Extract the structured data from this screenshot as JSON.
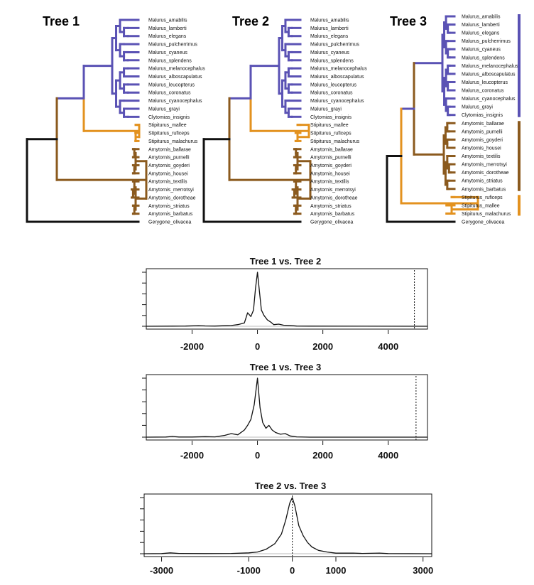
{
  "colors": {
    "malurus": "#5a52b4",
    "stipiturus": "#e3921f",
    "amytornis": "#8b5a1e",
    "outgroup": "#111111",
    "density": "#111111",
    "zeroline": "#bbbbbb"
  },
  "trees": [
    {
      "id": "tree1",
      "title": "Tree 1",
      "tips": [
        {
          "name": "Malurus_amabilis",
          "group": "malurus"
        },
        {
          "name": "Malurus_lamberti",
          "group": "malurus"
        },
        {
          "name": "Malurus_elegans",
          "group": "malurus"
        },
        {
          "name": "Malurus_pulcherrimus",
          "group": "malurus"
        },
        {
          "name": "Malurus_cyaneus",
          "group": "malurus"
        },
        {
          "name": "Malurus_splendens",
          "group": "malurus"
        },
        {
          "name": "Malurus_melanocephalus",
          "group": "malurus"
        },
        {
          "name": "Malurus_alboscapulatus",
          "group": "malurus"
        },
        {
          "name": "Malurus_leucopterus",
          "group": "malurus"
        },
        {
          "name": "Malurus_coronatus",
          "group": "malurus"
        },
        {
          "name": "Malurus_cyanocephalus",
          "group": "malurus"
        },
        {
          "name": "Malurus_grayi",
          "group": "malurus"
        },
        {
          "name": "Clytomias_insignis",
          "group": "malurus"
        },
        {
          "name": "Stipiturus_mallee",
          "group": "stipiturus"
        },
        {
          "name": "Stipiturus_ruficeps",
          "group": "stipiturus"
        },
        {
          "name": "Stipiturus_malachurus",
          "group": "stipiturus"
        },
        {
          "name": "Amytornis_ballarae",
          "group": "amytornis"
        },
        {
          "name": "Amytornis_purnelli",
          "group": "amytornis"
        },
        {
          "name": "Amytornis_goyderi",
          "group": "amytornis"
        },
        {
          "name": "Amytornis_housei",
          "group": "amytornis"
        },
        {
          "name": "Amytornis_textilis",
          "group": "amytornis"
        },
        {
          "name": "Amytornis_merrotsyi",
          "group": "amytornis"
        },
        {
          "name": "Amytornis_dorotheae",
          "group": "amytornis"
        },
        {
          "name": "Amytornis_striatus",
          "group": "amytornis"
        },
        {
          "name": "Amytornis_barbatus",
          "group": "amytornis"
        },
        {
          "name": "Gerygone_olivacea",
          "group": "outgroup"
        }
      ]
    },
    {
      "id": "tree2",
      "title": "Tree 2",
      "tips": [
        {
          "name": "Malurus_amabilis",
          "group": "malurus"
        },
        {
          "name": "Malurus_lamberti",
          "group": "malurus"
        },
        {
          "name": "Malurus_elegans",
          "group": "malurus"
        },
        {
          "name": "Malurus_pulcherrimus",
          "group": "malurus"
        },
        {
          "name": "Malurus_cyaneus",
          "group": "malurus"
        },
        {
          "name": "Malurus_splendens",
          "group": "malurus"
        },
        {
          "name": "Malurus_melanocephalus",
          "group": "malurus"
        },
        {
          "name": "Malurus_alboscapulatus",
          "group": "malurus"
        },
        {
          "name": "Malurus_leucopterus",
          "group": "malurus"
        },
        {
          "name": "Malurus_coronatus",
          "group": "malurus"
        },
        {
          "name": "Malurus_cyanocephalus",
          "group": "malurus"
        },
        {
          "name": "Malurus_grayi",
          "group": "malurus"
        },
        {
          "name": "Clytomias_insignis",
          "group": "malurus"
        },
        {
          "name": "Stipiturus_mallee",
          "group": "stipiturus"
        },
        {
          "name": "Stipiturus_ruficeps",
          "group": "stipiturus"
        },
        {
          "name": "Stipiturus_malachurus",
          "group": "stipiturus"
        },
        {
          "name": "Amytornis_ballarae",
          "group": "amytornis"
        },
        {
          "name": "Amytornis_purnelli",
          "group": "amytornis"
        },
        {
          "name": "Amytornis_goyderi",
          "group": "amytornis"
        },
        {
          "name": "Amytornis_housei",
          "group": "amytornis"
        },
        {
          "name": "Amytornis_textilis",
          "group": "amytornis"
        },
        {
          "name": "Amytornis_merrotsyi",
          "group": "amytornis"
        },
        {
          "name": "Amytornis_dorotheae",
          "group": "amytornis"
        },
        {
          "name": "Amytornis_striatus",
          "group": "amytornis"
        },
        {
          "name": "Amytornis_barbatus",
          "group": "amytornis"
        },
        {
          "name": "Gerygone_olivacea",
          "group": "outgroup"
        }
      ]
    },
    {
      "id": "tree3",
      "title": "Tree 3",
      "tips": [
        {
          "name": "Malurus_amabilis",
          "group": "malurus"
        },
        {
          "name": "Malurus_lamberti",
          "group": "malurus"
        },
        {
          "name": "Malurus_elegans",
          "group": "malurus"
        },
        {
          "name": "Malurus_pulcherrimus",
          "group": "malurus"
        },
        {
          "name": "Malurus_cyaneus",
          "group": "malurus"
        },
        {
          "name": "Malurus_splendens",
          "group": "malurus"
        },
        {
          "name": "Malurus_melanocephalus",
          "group": "malurus"
        },
        {
          "name": "Malurus_alboscapulatus",
          "group": "malurus"
        },
        {
          "name": "Malurus_leucopterus",
          "group": "malurus"
        },
        {
          "name": "Malurus_coronatus",
          "group": "malurus"
        },
        {
          "name": "Malurus_cyanocephalus",
          "group": "malurus"
        },
        {
          "name": "Malurus_grayi",
          "group": "malurus"
        },
        {
          "name": "Clytomias_insignis",
          "group": "malurus"
        },
        {
          "name": "Amytornis_ballarae",
          "group": "amytornis"
        },
        {
          "name": "Amytornis_purnelli",
          "group": "amytornis"
        },
        {
          "name": "Amytornis_goyderi",
          "group": "amytornis"
        },
        {
          "name": "Amytornis_housei",
          "group": "amytornis"
        },
        {
          "name": "Amytornis_textilis",
          "group": "amytornis"
        },
        {
          "name": "Amytornis_merrotsyi",
          "group": "amytornis"
        },
        {
          "name": "Amytornis_dorotheae",
          "group": "amytornis"
        },
        {
          "name": "Amytornis_striatus",
          "group": "amytornis"
        },
        {
          "name": "Amytornis_barbatus",
          "group": "amytornis"
        },
        {
          "name": "Stipiturus_ruficeps",
          "group": "stipiturus"
        },
        {
          "name": "Stipiturus_mallee",
          "group": "stipiturus"
        },
        {
          "name": "Stipiturus_malachurus",
          "group": "stipiturus"
        },
        {
          "name": "Gerygone_olivacea",
          "group": "outgroup"
        }
      ],
      "clade_bars": [
        "malurus",
        "amytornis",
        "stipiturus"
      ]
    }
  ],
  "chart_data": [
    {
      "type": "line",
      "title": "Tree 1 vs. Tree 2",
      "xlim": [
        -3400,
        5200
      ],
      "xticks": [
        -2000,
        0,
        2000,
        4000
      ],
      "observed": 4800,
      "peak_x": 0,
      "density": [
        [
          -3400,
          0
        ],
        [
          -2600,
          0.002
        ],
        [
          -2200,
          0.004
        ],
        [
          -1800,
          0.012
        ],
        [
          -1600,
          0.006
        ],
        [
          -1300,
          0.004
        ],
        [
          -1000,
          0.01
        ],
        [
          -800,
          0.015
        ],
        [
          -600,
          0.03
        ],
        [
          -400,
          0.06
        ],
        [
          -300,
          0.25
        ],
        [
          -200,
          0.18
        ],
        [
          -120,
          0.3
        ],
        [
          -60,
          0.7
        ],
        [
          0,
          1.0
        ],
        [
          60,
          0.65
        ],
        [
          120,
          0.3
        ],
        [
          200,
          0.2
        ],
        [
          300,
          0.12
        ],
        [
          400,
          0.08
        ],
        [
          500,
          0.03
        ],
        [
          650,
          0.04
        ],
        [
          800,
          0.02
        ],
        [
          1000,
          0.015
        ],
        [
          1200,
          0.004
        ],
        [
          1600,
          0.002
        ],
        [
          5200,
          0
        ]
      ]
    },
    {
      "type": "line",
      "title": "Tree 1 vs. Tree 3",
      "xlim": [
        -3400,
        5200
      ],
      "xticks": [
        -2000,
        0,
        2000,
        4000
      ],
      "observed": 4850,
      "peak_x": 0,
      "density": [
        [
          -3400,
          0
        ],
        [
          -2800,
          0.003
        ],
        [
          -2600,
          0.012
        ],
        [
          -2400,
          0.003
        ],
        [
          -2000,
          0.002
        ],
        [
          -1600,
          0.008
        ],
        [
          -1300,
          0.005
        ],
        [
          -1000,
          0.03
        ],
        [
          -800,
          0.06
        ],
        [
          -600,
          0.04
        ],
        [
          -400,
          0.12
        ],
        [
          -300,
          0.2
        ],
        [
          -200,
          0.3
        ],
        [
          -100,
          0.55
        ],
        [
          0,
          1.0
        ],
        [
          80,
          0.5
        ],
        [
          160,
          0.25
        ],
        [
          260,
          0.15
        ],
        [
          350,
          0.2
        ],
        [
          450,
          0.12
        ],
        [
          550,
          0.08
        ],
        [
          700,
          0.05
        ],
        [
          850,
          0.06
        ],
        [
          1000,
          0.02
        ],
        [
          1200,
          0.005
        ],
        [
          1600,
          0
        ],
        [
          5200,
          0
        ]
      ]
    },
    {
      "type": "line",
      "title": "Tree 2 vs. Tree 3",
      "xlim": [
        -3400,
        3200
      ],
      "xticks": [
        -3000,
        -1000,
        0,
        1000,
        3000
      ],
      "observed": 0,
      "peak_x": 0,
      "density": [
        [
          -3400,
          0
        ],
        [
          -3000,
          0.003
        ],
        [
          -2800,
          0.015
        ],
        [
          -2600,
          0.005
        ],
        [
          -2000,
          0.003
        ],
        [
          -1400,
          0.005
        ],
        [
          -1000,
          0.015
        ],
        [
          -800,
          0.03
        ],
        [
          -600,
          0.08
        ],
        [
          -400,
          0.18
        ],
        [
          -250,
          0.35
        ],
        [
          -150,
          0.6
        ],
        [
          -60,
          0.9
        ],
        [
          0,
          1.0
        ],
        [
          60,
          0.85
        ],
        [
          150,
          0.5
        ],
        [
          250,
          0.32
        ],
        [
          350,
          0.2
        ],
        [
          450,
          0.12
        ],
        [
          600,
          0.06
        ],
        [
          800,
          0.03
        ],
        [
          1000,
          0.01
        ],
        [
          1400,
          0.012
        ],
        [
          1600,
          0.005
        ],
        [
          2000,
          0.012
        ],
        [
          2200,
          0.003
        ],
        [
          3200,
          0
        ]
      ]
    }
  ]
}
